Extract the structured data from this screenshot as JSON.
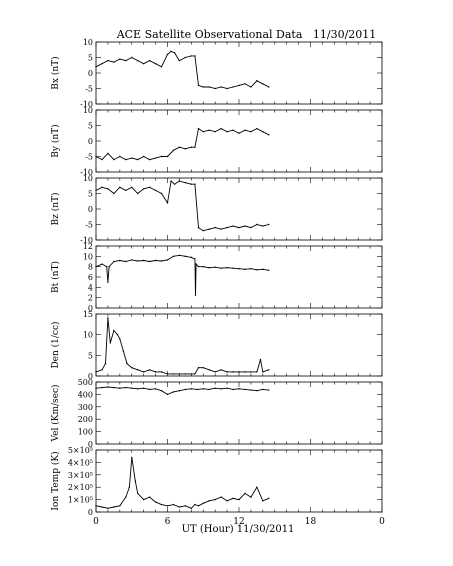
{
  "title": "ACE Satellite Observational Data   11/30/2011",
  "xlabel": "UT (Hour)  11/30/2011",
  "chart_data": [
    {
      "type": "line",
      "title": "ACE Satellite Observational Data   11/30/2011",
      "ylabel": "Bx (nT)",
      "ylim": [
        -10,
        10
      ],
      "yticks": [
        "10",
        "5",
        "0",
        "-5",
        "-10"
      ],
      "ytick_values": [
        10,
        5,
        0,
        -5,
        -10
      ],
      "xlim": [
        0,
        24
      ],
      "xticks": [
        "0",
        "6",
        "12",
        "18",
        "0"
      ],
      "grid": false,
      "x": [
        0,
        0.5,
        1,
        1.5,
        2,
        2.5,
        3,
        3.5,
        4,
        4.5,
        5,
        5.5,
        6,
        6.3,
        6.6,
        7,
        7.5,
        8,
        8.3,
        8.6,
        9,
        9.5,
        10,
        10.5,
        11,
        11.5,
        12,
        12.5,
        13,
        13.5,
        14,
        14.5
      ],
      "y": [
        2,
        3,
        4,
        3.5,
        4.5,
        4,
        5,
        4,
        3,
        4,
        3,
        2,
        6,
        7,
        6.5,
        4,
        5,
        5.5,
        5.5,
        -4,
        -4.5,
        -4.5,
        -5,
        -4.5,
        -5,
        -4.5,
        -4,
        -3.5,
        -4.5,
        -2.5,
        -3.5,
        -4.5
      ]
    },
    {
      "type": "line",
      "ylabel": "By (nT)",
      "ylim": [
        -10,
        10
      ],
      "yticks": [
        "10",
        "5",
        "0",
        "-5",
        "-10"
      ],
      "ytick_values": [
        10,
        5,
        0,
        -5,
        -10
      ],
      "xlim": [
        0,
        24
      ],
      "grid": false,
      "x": [
        0,
        0.5,
        1,
        1.5,
        2,
        2.5,
        3,
        3.5,
        4,
        4.5,
        5,
        5.5,
        6,
        6.5,
        7,
        7.5,
        8,
        8.3,
        8.6,
        9,
        9.5,
        10,
        10.5,
        11,
        11.5,
        12,
        12.5,
        13,
        13.5,
        14,
        14.5
      ],
      "y": [
        -5,
        -6,
        -4,
        -6,
        -5,
        -6,
        -5.5,
        -6,
        -5,
        -6,
        -5.5,
        -5,
        -5,
        -3,
        -2,
        -2.5,
        -2,
        -2,
        4,
        3,
        3.5,
        3,
        4,
        3,
        3.5,
        2.5,
        3.5,
        3,
        4,
        3,
        2
      ]
    },
    {
      "type": "line",
      "ylabel": "Bz (nT)",
      "ylim": [
        -10,
        10
      ],
      "yticks": [
        "10",
        "5",
        "0",
        "-5",
        "-10"
      ],
      "ytick_values": [
        10,
        5,
        0,
        -5,
        -10
      ],
      "xlim": [
        0,
        24
      ],
      "grid": false,
      "x": [
        0,
        0.5,
        1,
        1.5,
        2,
        2.5,
        3,
        3.5,
        4,
        4.5,
        5,
        5.5,
        6,
        6.3,
        6.6,
        7,
        7.5,
        8,
        8.3,
        8.6,
        9,
        9.5,
        10,
        10.5,
        11,
        11.5,
        12,
        12.5,
        13,
        13.5,
        14,
        14.5
      ],
      "y": [
        6,
        7,
        6.5,
        5,
        7,
        6,
        7,
        5,
        6.5,
        7,
        6,
        5,
        2,
        9,
        8,
        9,
        8.5,
        8,
        8,
        -6,
        -7,
        -6.5,
        -6,
        -6.5,
        -6,
        -5.5,
        -6,
        -5.5,
        -6,
        -5,
        -5.5,
        -5
      ]
    },
    {
      "type": "line",
      "ylabel": "Bt (nT)",
      "ylim": [
        0,
        12
      ],
      "yticks": [
        "12",
        "10",
        "8",
        "6",
        "4",
        "2",
        "0"
      ],
      "ytick_values": [
        12,
        10,
        8,
        6,
        4,
        2,
        0
      ],
      "xlim": [
        0,
        24
      ],
      "grid": false,
      "x": [
        0,
        0.5,
        0.9,
        1.0,
        1.1,
        1.5,
        2,
        2.5,
        3,
        3.5,
        4,
        4.5,
        5,
        5.5,
        6,
        6.5,
        7,
        7.5,
        8,
        8.3,
        8.35,
        8.4,
        8.6,
        9,
        9.5,
        10,
        10.5,
        11,
        11.5,
        12,
        12.5,
        13,
        13.5,
        14,
        14.5
      ],
      "y": [
        8,
        8.5,
        8,
        5,
        8,
        9,
        9.2,
        9,
        9.3,
        9.1,
        9.2,
        9,
        9.2,
        9.1,
        9.3,
        10,
        10.2,
        10,
        9.8,
        9.5,
        2.5,
        8.5,
        8,
        8,
        7.8,
        7.9,
        7.7,
        7.8,
        7.7,
        7.6,
        7.5,
        7.6,
        7.4,
        7.5,
        7.3
      ]
    },
    {
      "type": "line",
      "ylabel": "Den (1/cc)",
      "ylim": [
        0,
        15
      ],
      "yticks": [
        "15",
        "10",
        "5",
        "0"
      ],
      "ytick_values": [
        15,
        10,
        5,
        0
      ],
      "xlim": [
        0,
        24
      ],
      "grid": false,
      "x": [
        0,
        0.5,
        0.8,
        1.0,
        1.2,
        1.5,
        1.8,
        2.0,
        2.3,
        2.6,
        3,
        3.5,
        4,
        4.5,
        5,
        5.5,
        6,
        6.5,
        7,
        7.5,
        8,
        8.3,
        8.6,
        9,
        9.5,
        10,
        10.5,
        11,
        11.5,
        12,
        12.5,
        13,
        13.5,
        13.8,
        14,
        14.5
      ],
      "y": [
        1,
        1.5,
        3,
        14,
        8,
        11,
        10,
        9,
        6,
        3,
        2,
        1.5,
        1,
        1.5,
        1,
        1,
        0.5,
        0.5,
        0.5,
        0.5,
        0.5,
        0.5,
        2,
        2,
        1.5,
        1,
        1.5,
        1,
        1,
        1,
        1,
        1,
        1,
        4,
        1,
        1.5
      ]
    },
    {
      "type": "line",
      "ylabel": "Vel (Km/sec)",
      "ylim": [
        0,
        500
      ],
      "yticks": [
        "500",
        "400",
        "300",
        "200",
        "100",
        "0"
      ],
      "ytick_values": [
        500,
        400,
        300,
        200,
        100,
        0
      ],
      "xlim": [
        0,
        24
      ],
      "grid": false,
      "x": [
        0,
        0.5,
        1,
        1.5,
        2,
        2.5,
        3,
        3.5,
        4,
        4.5,
        5,
        5.5,
        6,
        6.5,
        7,
        7.5,
        8,
        8.5,
        9,
        9.5,
        10,
        10.5,
        11,
        11.5,
        12,
        12.5,
        13,
        13.5,
        14,
        14.5
      ],
      "y": [
        450,
        455,
        460,
        455,
        450,
        455,
        450,
        445,
        450,
        440,
        445,
        430,
        400,
        420,
        430,
        440,
        445,
        440,
        445,
        440,
        450,
        445,
        450,
        440,
        445,
        440,
        435,
        430,
        440,
        435
      ]
    },
    {
      "type": "line",
      "ylabel": "Ion Temp (K)",
      "ylim": [
        0,
        500000
      ],
      "yticks": [
        "5×10⁵",
        "4×10⁵",
        "3×10⁵",
        "2×10⁵",
        "1×10⁵",
        "0"
      ],
      "ytick_values": [
        500000,
        400000,
        300000,
        200000,
        100000,
        0
      ],
      "xlim": [
        0,
        24
      ],
      "xticks": [
        "0",
        "6",
        "12",
        "18",
        "0"
      ],
      "grid": false,
      "x": [
        0,
        0.5,
        1,
        1.5,
        2,
        2.5,
        2.8,
        3,
        3.3,
        3.5,
        4,
        4.5,
        5,
        5.5,
        6,
        6.5,
        7,
        7.5,
        8,
        8.3,
        8.6,
        9,
        9.5,
        10,
        10.5,
        11,
        11.5,
        12,
        12.5,
        13,
        13.5,
        14,
        14.5
      ],
      "y": [
        50000,
        40000,
        30000,
        40000,
        50000,
        120000,
        200000,
        440000,
        250000,
        150000,
        100000,
        120000,
        80000,
        60000,
        50000,
        60000,
        40000,
        50000,
        30000,
        60000,
        50000,
        70000,
        90000,
        100000,
        120000,
        90000,
        110000,
        100000,
        150000,
        120000,
        200000,
        90000,
        110000
      ]
    }
  ]
}
